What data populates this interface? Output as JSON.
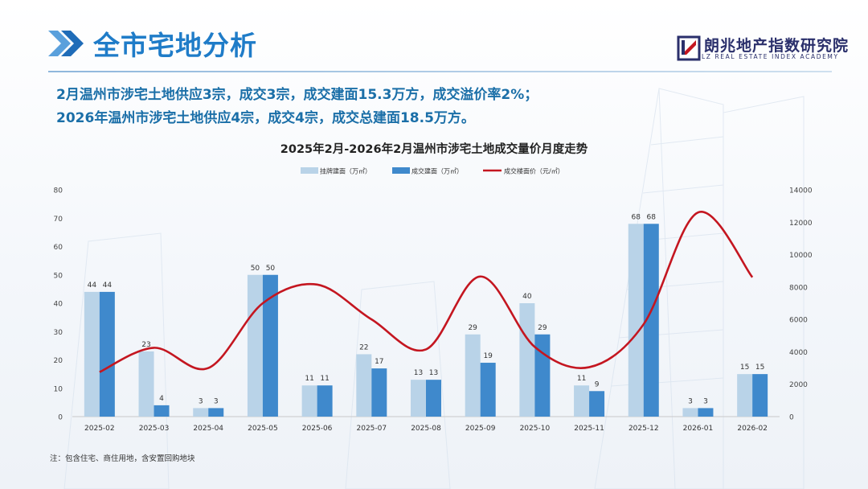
{
  "header": {
    "title": "全市宅地分析",
    "logo_name": "朗兆地产指数研究院",
    "logo_en": "LZ REAL ESTATE INDEX ACADEMY"
  },
  "summary": {
    "line1": "2月温州市涉宅土地供应3宗，成交3宗，成交建面15.3万方，成交溢价率2%；",
    "line2": "2026年温州市涉宅土地供应4宗，成交4宗，成交总建面18.5万方。"
  },
  "colors": {
    "listed_bar": "#b9d3e8",
    "deal_bar": "#3f89cc",
    "price_line": "#c41620",
    "title": "#1f7cc8",
    "summary": "#1b6fa8"
  },
  "chart_data": {
    "type": "bar",
    "title": "2025年2月-2026年2月温州市涉宅土地成交量价月度走势",
    "categories": [
      "2025-02",
      "2025-03",
      "2025-04",
      "2025-05",
      "2025-06",
      "2025-07",
      "2025-08",
      "2025-09",
      "2025-10",
      "2025-11",
      "2025-12",
      "2026-01",
      "2026-02"
    ],
    "series": [
      {
        "name": "挂牌建面（万㎡）",
        "type": "bar",
        "axis": "left",
        "values": [
          44,
          23,
          3,
          50,
          11,
          22,
          13,
          29,
          40,
          11,
          68,
          3,
          15
        ]
      },
      {
        "name": "成交建面（万㎡）",
        "type": "bar",
        "axis": "left",
        "values": [
          44,
          4,
          3,
          50,
          11,
          17,
          13,
          19,
          29,
          9,
          68,
          3,
          15
        ]
      },
      {
        "name": "成交楼面价（元/㎡）",
        "type": "line",
        "axis": "right",
        "values": [
          2750,
          4250,
          3000,
          7000,
          8150,
          6000,
          4150,
          8650,
          4300,
          3050,
          5700,
          12600,
          8600
        ]
      }
    ],
    "y_left": {
      "min": 0,
      "max": 80,
      "ticks": [
        "0",
        "10",
        "20",
        "30",
        "40",
        "50",
        "60",
        "70",
        "80"
      ]
    },
    "y_right": {
      "min": 0,
      "max": 14000,
      "ticks": [
        "0",
        "2000",
        "4000",
        "6000",
        "8000",
        "10000",
        "12000",
        "14000"
      ]
    },
    "legend_position": "top-center",
    "grid": false
  },
  "note": "注：包含住宅、商住用地，含安置回购地块"
}
